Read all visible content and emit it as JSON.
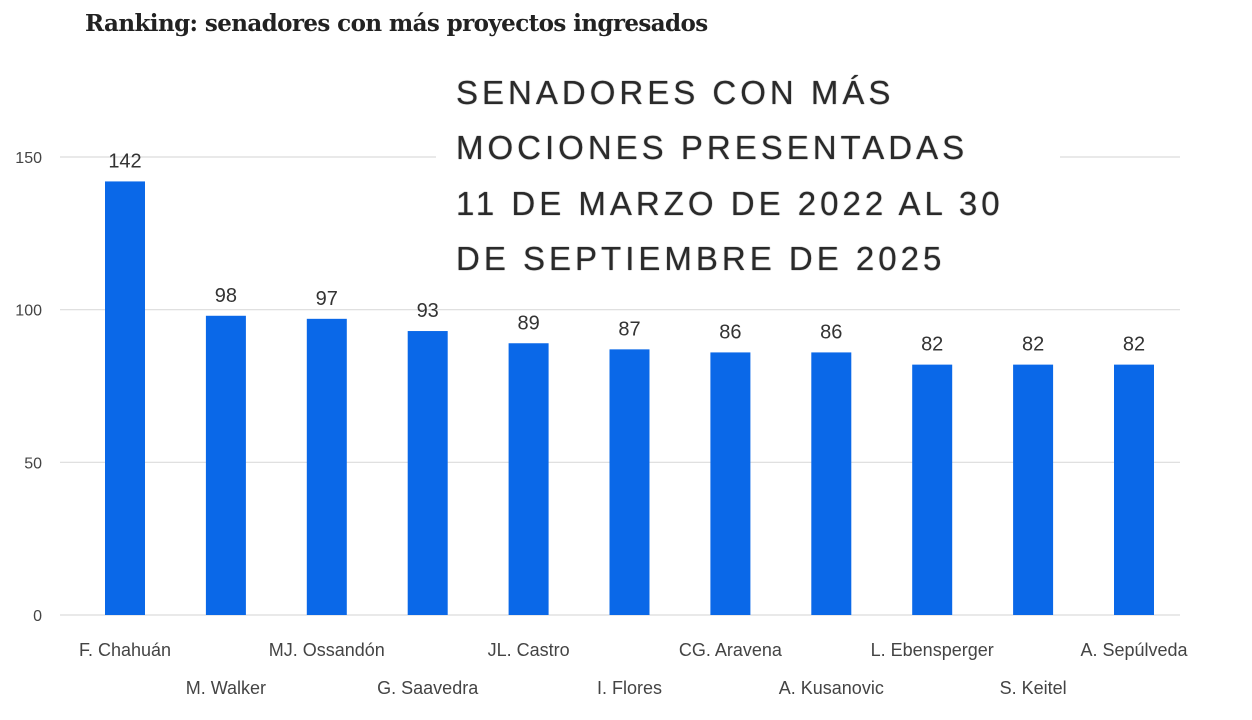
{
  "title": "Ranking: senadores con más proyectos ingresados",
  "overlay": {
    "lines": [
      "SENADORES CON MÁS",
      "MOCIONES PRESENTADAS",
      "11 DE MARZO DE 2022 AL 30",
      "DE SEPTIEMBRE DE 2025"
    ]
  },
  "chart_data": {
    "type": "bar",
    "title": "Ranking: senadores con más proyectos ingresados",
    "categories": [
      "F. Chahuán",
      "M. Walker",
      "MJ. Ossandón",
      "G. Saavedra",
      "JL. Castro",
      "I. Flores",
      "CG. Aravena",
      "A. Kusanovic",
      "L. Ebensperger",
      "S. Keitel",
      "A. Sepúlveda"
    ],
    "values": [
      142,
      98,
      97,
      93,
      89,
      87,
      86,
      86,
      82,
      82,
      82
    ],
    "data_labels": [
      "142",
      "98",
      "97",
      "93",
      "89",
      "87",
      "86",
      "86",
      "82",
      "82",
      "82"
    ],
    "ylim": [
      0,
      150
    ],
    "yticks": [
      0,
      50,
      100,
      150
    ],
    "grid": true,
    "bar_color": "#0a68e8",
    "xlabel": "",
    "ylabel": ""
  }
}
